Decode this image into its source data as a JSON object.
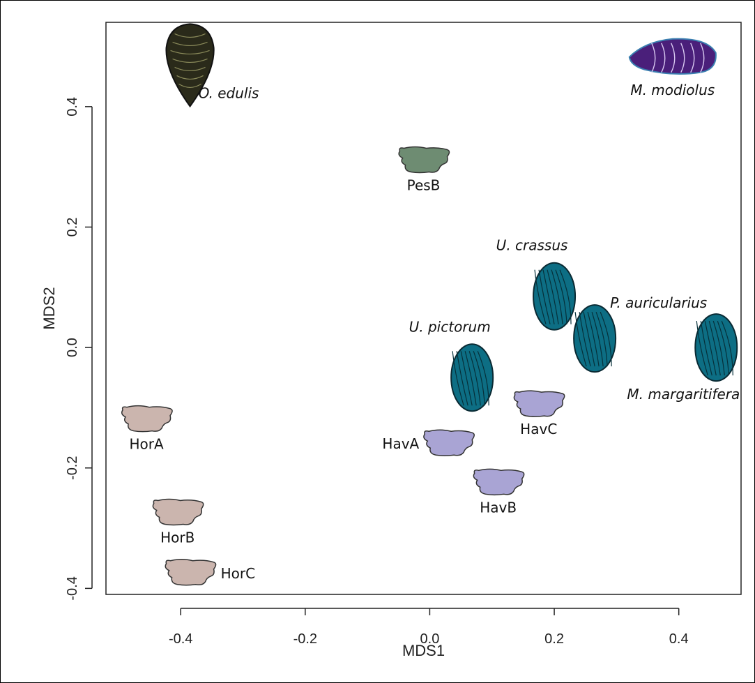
{
  "chart_data": {
    "type": "scatter",
    "title": "",
    "xlabel": "MDS1",
    "ylabel": "MDS2",
    "xlim": [
      -0.52,
      0.5
    ],
    "ylim": [
      -0.41,
      0.54
    ],
    "x_ticks": [
      -0.4,
      -0.2,
      0.0,
      0.2,
      0.4
    ],
    "x_tick_labels": [
      "-0.4",
      "-0.2",
      "0.0",
      "0.2",
      "0.4"
    ],
    "y_ticks": [
      -0.4,
      -0.2,
      0.0,
      0.2,
      0.4
    ],
    "y_tick_labels": [
      "-0.4",
      "-0.2",
      "0.0",
      "0.2",
      "0.4"
    ],
    "grid": false,
    "legend": "none",
    "points": [
      {
        "label": "O. edulis",
        "x": -0.385,
        "y": 0.47,
        "group": "oyster",
        "shape": "oyster",
        "color": "#2a2a1a",
        "italic": true,
        "label_pos": "right-below"
      },
      {
        "label": "M. modiolus",
        "x": 0.39,
        "y": 0.48,
        "group": "horse-mussel",
        "shape": "modiolus",
        "color": "#4a1f7a",
        "italic": true,
        "label_pos": "below"
      },
      {
        "label": "PesB",
        "x": -0.01,
        "y": 0.31,
        "group": "Pes",
        "shape": "shell",
        "color": "#6e8c72",
        "italic": false,
        "label_pos": "below"
      },
      {
        "label": "U. crassus",
        "x": 0.2,
        "y": 0.085,
        "group": "freshwater-mussel",
        "shape": "unionid",
        "color": "#0d6e84",
        "italic": true,
        "label_pos": "above-left"
      },
      {
        "label": "P. auricularius",
        "x": 0.265,
        "y": 0.015,
        "group": "freshwater-mussel",
        "shape": "unionid",
        "color": "#0d6e84",
        "italic": true,
        "label_pos": "above-right"
      },
      {
        "label": "M. margaritifera",
        "x": 0.46,
        "y": 0.0,
        "group": "freshwater-mussel",
        "shape": "unionid",
        "color": "#0d6e84",
        "italic": true,
        "label_pos": "below-left"
      },
      {
        "label": "U. pictorum",
        "x": 0.068,
        "y": -0.05,
        "group": "freshwater-mussel",
        "shape": "unionid",
        "color": "#0d6e84",
        "italic": true,
        "label_pos": "above-left"
      },
      {
        "label": "HavC",
        "x": 0.175,
        "y": -0.095,
        "group": "Hav",
        "shape": "shell",
        "color": "#a9a4d4",
        "italic": false,
        "label_pos": "below"
      },
      {
        "label": "HavA",
        "x": 0.03,
        "y": -0.16,
        "group": "Hav",
        "shape": "shell",
        "color": "#a9a4d4",
        "italic": false,
        "label_pos": "left"
      },
      {
        "label": "HavB",
        "x": 0.11,
        "y": -0.225,
        "group": "Hav",
        "shape": "shell",
        "color": "#a9a4d4",
        "italic": false,
        "label_pos": "below"
      },
      {
        "label": "HorA",
        "x": -0.455,
        "y": -0.12,
        "group": "Hor",
        "shape": "shell",
        "color": "#cbb5ae",
        "italic": false,
        "label_pos": "below"
      },
      {
        "label": "HorB",
        "x": -0.405,
        "y": -0.275,
        "group": "Hor",
        "shape": "shell",
        "color": "#cbb5ae",
        "italic": false,
        "label_pos": "below"
      },
      {
        "label": "HorC",
        "x": -0.385,
        "y": -0.375,
        "group": "Hor",
        "shape": "shell",
        "color": "#cbb5ae",
        "italic": false,
        "label_pos": "right"
      }
    ]
  }
}
